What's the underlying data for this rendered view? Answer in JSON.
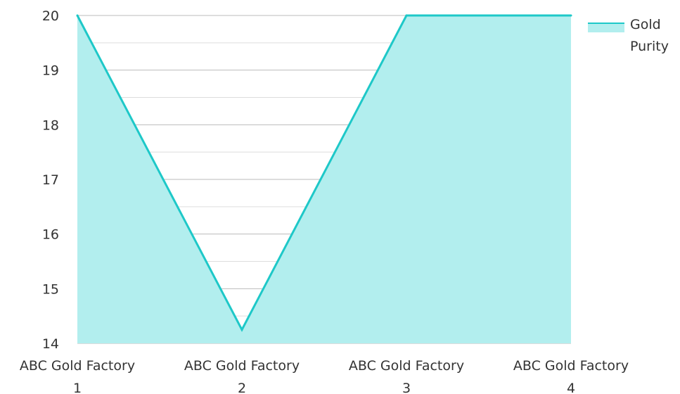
{
  "chart_data": {
    "type": "area",
    "categories": [
      "ABC Gold Factory 1",
      "ABC Gold Factory 2",
      "ABC Gold Factory 3",
      "ABC Gold Factory 4"
    ],
    "category_lines": [
      [
        "ABC Gold Factory",
        "1"
      ],
      [
        "ABC Gold Factory",
        "2"
      ],
      [
        "ABC Gold Factory",
        "3"
      ],
      [
        "ABC Gold Factory",
        "4"
      ]
    ],
    "series": [
      {
        "name": "Gold Purity",
        "values": [
          20,
          14.25,
          20,
          20
        ]
      }
    ],
    "legend_lines": [
      "Gold",
      "Purity"
    ],
    "yticks": [
      "14",
      "15",
      "16",
      "17",
      "18",
      "19",
      "20"
    ],
    "ylim": [
      14,
      20
    ],
    "grid": true,
    "legend": "top-right",
    "title": "",
    "xlabel": "",
    "ylabel": "",
    "colors": {
      "line": "#1ec8c8",
      "fill": "#b2eeee",
      "grid_major": "#bbbbbb",
      "grid_minor": "#dddddd",
      "text": "#333333"
    }
  }
}
